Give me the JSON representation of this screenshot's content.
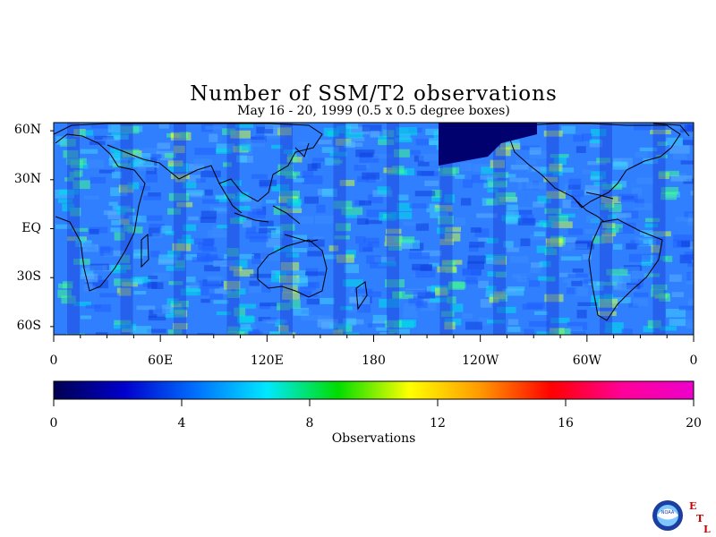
{
  "title": "Number of SSM/T2 observations",
  "subtitle": "May 16 - 20, 1999 (0.5 x 0.5 degree boxes)",
  "lat_labels": [
    "60N",
    "30N",
    "EQ",
    "30S",
    "60S"
  ],
  "lat_values": [
    60,
    30,
    0,
    -30,
    -60
  ],
  "lon_labels": [
    "0",
    "60E",
    "120E",
    "180",
    "120W",
    "60W",
    "0"
  ],
  "lon_values": [
    0,
    60,
    120,
    180,
    240,
    300,
    360
  ],
  "colorbar": {
    "title": "Observations",
    "labels": [
      "0",
      "4",
      "8",
      "12",
      "16",
      "20"
    ],
    "values": [
      0,
      4,
      8,
      12,
      16,
      20
    ],
    "stops": [
      "#000050",
      "#0000cc",
      "#0070ff",
      "#00e8ff",
      "#00dd00",
      "#ffff00",
      "#ff9900",
      "#ff0000",
      "#ff0099",
      "#ee00cc"
    ]
  },
  "logo": {
    "agency": "NOAA",
    "lab_letters": [
      "E",
      "T",
      "L"
    ],
    "icon": "noaa-logo-icon"
  }
}
